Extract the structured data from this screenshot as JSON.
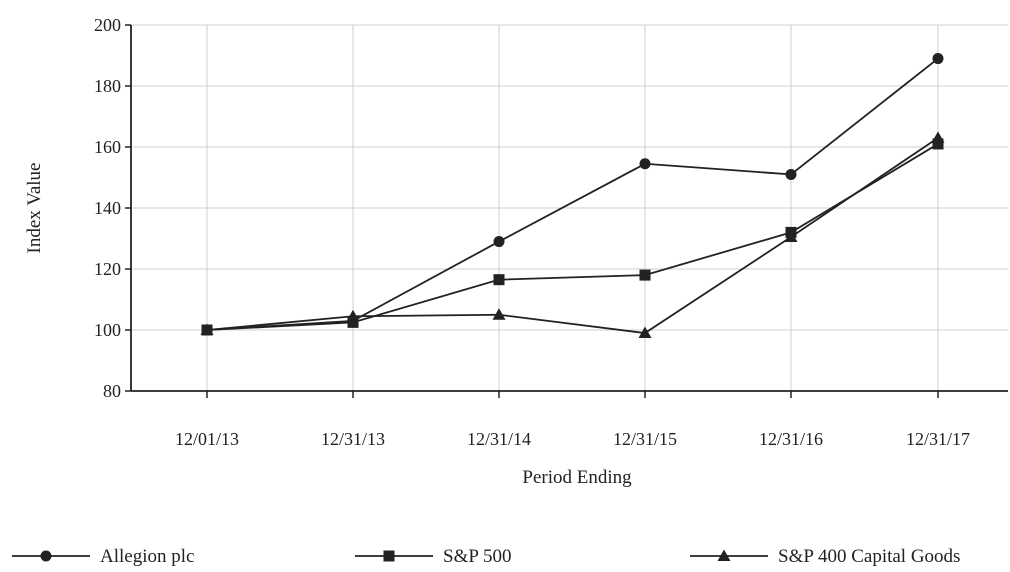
{
  "chart_data": {
    "type": "line",
    "title": "",
    "xlabel": "Period Ending",
    "ylabel": "Index Value",
    "categories": [
      "12/01/13",
      "12/31/13",
      "12/31/14",
      "12/31/15",
      "12/31/16",
      "12/31/17"
    ],
    "ylim": [
      80,
      200
    ],
    "yticks": [
      80,
      100,
      120,
      140,
      160,
      180,
      200
    ],
    "grid": true,
    "legend_position": "bottom",
    "series": [
      {
        "name": "Allegion plc",
        "marker": "circle",
        "color": "#222222",
        "values": [
          100,
          103,
          129,
          154.5,
          151,
          189
        ]
      },
      {
        "name": "S&P 500",
        "marker": "square",
        "color": "#222222",
        "values": [
          100,
          102.5,
          116.5,
          118,
          132,
          161
        ]
      },
      {
        "name": "S&P 400 Capital Goods",
        "marker": "triangle",
        "color": "#222222",
        "values": [
          100,
          104.5,
          105,
          99,
          130.5,
          163
        ]
      }
    ]
  }
}
